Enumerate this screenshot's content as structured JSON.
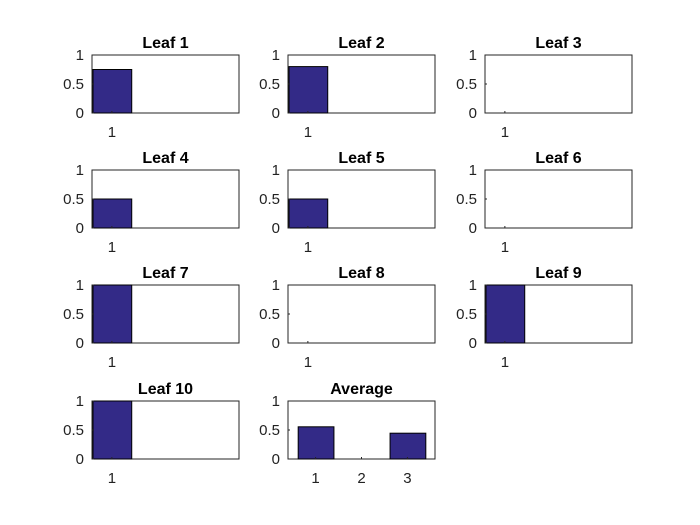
{
  "colors": {
    "bar": "#332a87",
    "axis": "#262626",
    "background": "#ffffff"
  },
  "chart_data": [
    {
      "type": "bar",
      "title": "Leaf 1",
      "categories": [
        "1"
      ],
      "values": [
        0.75
      ],
      "ylim": [
        0,
        1
      ],
      "yticks": [
        "0",
        "0.5",
        "1"
      ]
    },
    {
      "type": "bar",
      "title": "Leaf 2",
      "categories": [
        "1"
      ],
      "values": [
        0.8
      ],
      "ylim": [
        0,
        1
      ],
      "yticks": [
        "0",
        "0.5",
        "1"
      ]
    },
    {
      "type": "bar",
      "title": "Leaf 3",
      "categories": [
        "1"
      ],
      "values": [
        0
      ],
      "ylim": [
        0,
        1
      ],
      "yticks": [
        "0",
        "0.5",
        "1"
      ]
    },
    {
      "type": "bar",
      "title": "Leaf 4",
      "categories": [
        "1"
      ],
      "values": [
        0.5
      ],
      "ylim": [
        0,
        1
      ],
      "yticks": [
        "0",
        "0.5",
        "1"
      ]
    },
    {
      "type": "bar",
      "title": "Leaf 5",
      "categories": [
        "1"
      ],
      "values": [
        0.5
      ],
      "ylim": [
        0,
        1
      ],
      "yticks": [
        "0",
        "0.5",
        "1"
      ]
    },
    {
      "type": "bar",
      "title": "Leaf 6",
      "categories": [
        "1"
      ],
      "values": [
        0
      ],
      "ylim": [
        0,
        1
      ],
      "yticks": [
        "0",
        "0.5",
        "1"
      ]
    },
    {
      "type": "bar",
      "title": "Leaf 7",
      "categories": [
        "1"
      ],
      "values": [
        1
      ],
      "ylim": [
        0,
        1
      ],
      "yticks": [
        "0",
        "0.5",
        "1"
      ]
    },
    {
      "type": "bar",
      "title": "Leaf 8",
      "categories": [
        "1"
      ],
      "values": [
        0
      ],
      "ylim": [
        0,
        1
      ],
      "yticks": [
        "0",
        "0.5",
        "1"
      ]
    },
    {
      "type": "bar",
      "title": "Leaf 9",
      "categories": [
        "1"
      ],
      "values": [
        1
      ],
      "ylim": [
        0,
        1
      ],
      "yticks": [
        "0",
        "0.5",
        "1"
      ]
    },
    {
      "type": "bar",
      "title": "Leaf 10",
      "categories": [
        "1"
      ],
      "values": [
        1
      ],
      "ylim": [
        0,
        1
      ],
      "yticks": [
        "0",
        "0.5",
        "1"
      ]
    },
    {
      "type": "bar",
      "title": "Average",
      "categories": [
        "1",
        "2",
        "3"
      ],
      "values": [
        0.555,
        0,
        0.445
      ],
      "ylim": [
        0,
        1
      ],
      "yticks": [
        "0",
        "0.5",
        "1"
      ]
    }
  ]
}
